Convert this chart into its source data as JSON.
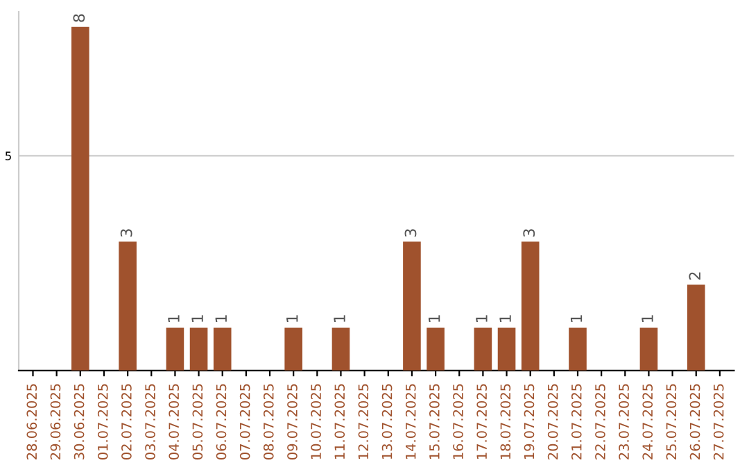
{
  "chart_data": {
    "type": "bar",
    "categories": [
      "28.06.2025",
      "29.06.2025",
      "30.06.2025",
      "01.07.2025",
      "02.07.2025",
      "03.07.2025",
      "04.07.2025",
      "05.07.2025",
      "06.07.2025",
      "07.07.2025",
      "08.07.2025",
      "09.07.2025",
      "10.07.2025",
      "11.07.2025",
      "12.07.2025",
      "13.07.2025",
      "14.07.2025",
      "15.07.2025",
      "16.07.2025",
      "17.07.2025",
      "18.07.2025",
      "19.07.2025",
      "20.07.2025",
      "21.07.2025",
      "22.07.2025",
      "23.07.2025",
      "24.07.2025",
      "25.07.2025",
      "26.07.2025",
      "27.07.2025"
    ],
    "values": [
      0,
      0,
      8,
      0,
      3,
      0,
      1,
      1,
      1,
      0,
      0,
      1,
      0,
      1,
      0,
      0,
      3,
      1,
      0,
      1,
      1,
      3,
      0,
      1,
      0,
      0,
      1,
      0,
      2,
      0
    ],
    "value_labels": [
      null,
      null,
      "8",
      null,
      "3",
      null,
      "1",
      "1",
      "1",
      null,
      null,
      "1",
      null,
      "1",
      null,
      null,
      "3",
      "1",
      null,
      "1",
      "1",
      "3",
      null,
      "1",
      null,
      null,
      "1",
      null,
      "2",
      null
    ],
    "color": "#a0522d",
    "ylim": [
      0,
      8.35
    ],
    "yticks": [
      5
    ],
    "grid": "y"
  }
}
